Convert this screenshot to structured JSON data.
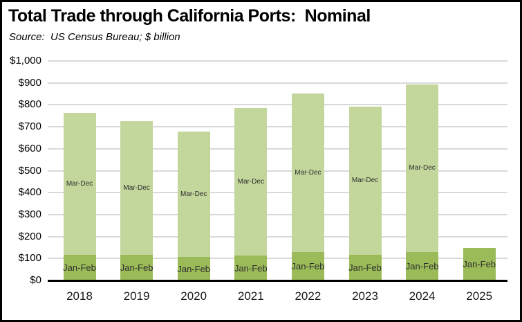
{
  "header": {
    "title": "Total Trade through California Ports:  Nominal",
    "source": "Source:  US Census Bureau; $ billion"
  },
  "colors": {
    "jan_feb_fill": "#9bbb59",
    "mar_dec_fill": "#c3d69b",
    "gridline": "#d9d9d9",
    "axis_line": "#000000",
    "text": "#000000"
  },
  "chart_data": {
    "type": "bar",
    "stacked": true,
    "title": "Total Trade through California Ports:  Nominal",
    "subtitle": "Source:  US Census Bureau; $ billion",
    "xlabel": "",
    "ylabel": "$ billion",
    "categories": [
      "2018",
      "2019",
      "2020",
      "2021",
      "2022",
      "2023",
      "2024",
      "2025"
    ],
    "series": [
      {
        "name": "Jan-Feb",
        "color": "#9bbb59",
        "values": [
          118,
          117,
          106,
          112,
          128,
          118,
          129,
          147
        ]
      },
      {
        "name": "Mar-Dec",
        "color": "#c3d69b",
        "values": [
          646,
          610,
          572,
          672,
          723,
          675,
          765,
          0
        ]
      }
    ],
    "totals": [
      764,
      727,
      678,
      784,
      851,
      793,
      894,
      147
    ],
    "ylim": [
      0,
      1000
    ],
    "ytick_interval": 100,
    "ytick_labels": [
      "$0",
      "$100",
      "$200",
      "$300",
      "$400",
      "$500",
      "$600",
      "$700",
      "$800",
      "$900",
      "$1,000"
    ],
    "grid": true,
    "legend": "none (series names shown as labels inside bar segments)"
  }
}
